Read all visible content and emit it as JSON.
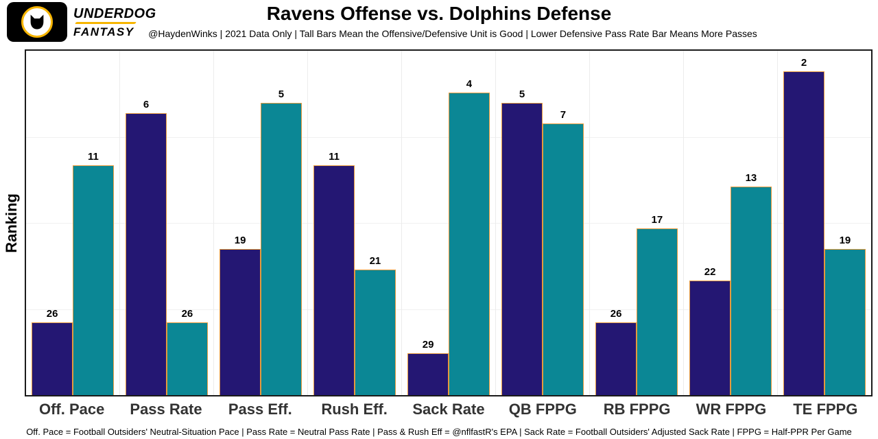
{
  "logo": {
    "name_line1": "UNDERDOG",
    "name_line2": "FANTASY",
    "accent_color": "#F7B500"
  },
  "header": {
    "title": "Ravens Offense vs. Dolphins Defense",
    "subtitle": "@HaydenWinks | 2021 Data Only | Tall Bars Mean the Offensive/Defensive Unit is Good | Lower Defensive Pass Rate Bar Means More Passes"
  },
  "footer": {
    "note": "Off. Pace = Football Outsiders' Neutral-Situation Pace | Pass Rate = Neutral Pass Rate | Pass & Rush Eff = @nflfastR's EPA | Sack Rate = Football Outsiders' Adjusted Sack Rate | FPPG = Half-PPR Per Game"
  },
  "chart_data": {
    "type": "bar",
    "title": "Ravens Offense vs. Dolphins Defense",
    "xlabel": "",
    "ylabel": "Ranking",
    "categories": [
      "Off. Pace",
      "Pass Rate",
      "Pass Eff.",
      "Rush Eff.",
      "Sack Rate",
      "QB FPPG",
      "RB FPPG",
      "WR FPPG",
      "TE FPPG"
    ],
    "series": [
      {
        "name": "Ravens Offense",
        "color": "#241773",
        "values": [
          26,
          6,
          19,
          11,
          29,
          5,
          26,
          22,
          2
        ]
      },
      {
        "name": "Dolphins Defense",
        "color": "#0B8795",
        "values": [
          11,
          26,
          5,
          21,
          4,
          7,
          17,
          13,
          19
        ]
      }
    ],
    "value_semantics": "rank (lower rank = taller bar)",
    "rank_scale_max": 33,
    "bar_border_color": "#E79A3C",
    "grid": true,
    "legend_position": "none",
    "value_labels": "above each bar"
  }
}
